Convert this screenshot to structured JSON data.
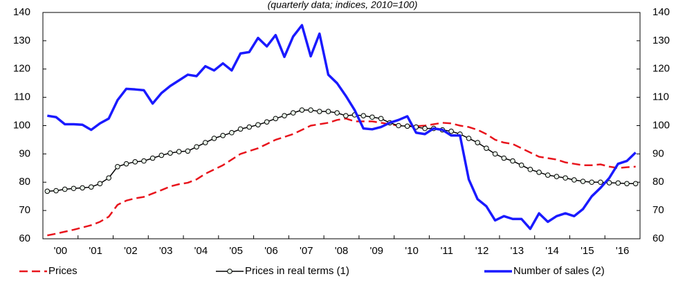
{
  "chart_data": {
    "type": "line",
    "title": "(quarterly data; indices, 2010=100)",
    "categories": [
      null,
      "'00",
      null,
      null,
      null,
      "'01",
      null,
      null,
      null,
      "'02",
      null,
      null,
      null,
      "'03",
      null,
      null,
      null,
      "'04",
      null,
      null,
      null,
      "'05",
      null,
      null,
      null,
      "'06",
      null,
      null,
      null,
      "'07",
      null,
      null,
      null,
      "'08",
      null,
      null,
      null,
      "'09",
      null,
      null,
      null,
      "'10",
      null,
      null,
      null,
      "'11",
      null,
      null,
      null,
      "'12",
      null,
      null,
      null,
      "'13",
      null,
      null,
      null,
      "'14",
      null,
      null,
      null,
      "'15",
      null,
      null,
      null,
      "'16",
      null,
      null
    ],
    "series": [
      {
        "name": "Prices",
        "color": "#e8141c",
        "style": "dashed",
        "values": [
          61.2,
          61.8,
          62.5,
          63.2,
          64.0,
          64.8,
          66.0,
          67.8,
          72.0,
          73.5,
          74.3,
          74.8,
          76.0,
          77.2,
          78.5,
          79.3,
          79.8,
          81.0,
          83.0,
          84.5,
          86.0,
          88.0,
          90.0,
          91.0,
          92.0,
          93.5,
          95.0,
          96.0,
          97.0,
          98.5,
          100.0,
          100.5,
          101.0,
          102.0,
          102.5,
          101.5,
          101.5,
          101.5,
          101.0,
          100.5,
          100.0,
          100.0,
          99.8,
          100.0,
          100.5,
          101.0,
          100.8,
          100.0,
          99.5,
          98.5,
          97.0,
          95.0,
          94.0,
          93.5,
          92.0,
          90.5,
          89.0,
          88.5,
          88.0,
          87.0,
          86.5,
          86.0,
          86.0,
          86.3,
          85.5,
          85.0,
          85.3,
          85.5
        ]
      },
      {
        "name": "Prices in real terms (1)",
        "color": "#000000",
        "style": "solid",
        "marker": "circle",
        "values": [
          76.8,
          77.0,
          77.5,
          77.8,
          78.0,
          78.3,
          79.5,
          81.5,
          85.5,
          86.5,
          87.2,
          87.5,
          88.5,
          89.5,
          90.3,
          90.8,
          91.0,
          92.5,
          94.0,
          95.5,
          96.5,
          97.5,
          98.8,
          99.5,
          100.3,
          101.3,
          102.5,
          103.5,
          104.5,
          105.5,
          105.5,
          105.0,
          105.0,
          104.5,
          103.5,
          103.8,
          103.5,
          103.0,
          102.5,
          101.0,
          100.0,
          99.8,
          99.5,
          99.0,
          99.0,
          98.5,
          98.0,
          97.0,
          95.5,
          94.0,
          92.0,
          90.0,
          88.5,
          87.5,
          86.0,
          84.5,
          83.5,
          82.5,
          82.0,
          81.5,
          80.8,
          80.3,
          80.0,
          80.0,
          79.8,
          79.7,
          79.5,
          79.5
        ]
      },
      {
        "name": "Number of sales (2)",
        "color": "#1a1aff",
        "style": "solid",
        "values": [
          103.5,
          103.0,
          100.5,
          100.5,
          100.3,
          98.5,
          100.8,
          102.5,
          109.0,
          113.0,
          112.8,
          112.5,
          107.8,
          111.5,
          114.0,
          116.0,
          118.0,
          117.5,
          121.0,
          119.5,
          122.0,
          119.5,
          125.5,
          126.0,
          131.0,
          128.0,
          132.0,
          124.3,
          131.5,
          135.5,
          124.5,
          132.5,
          118.0,
          115.0,
          110.5,
          105.5,
          99.0,
          98.7,
          99.5,
          101.0,
          102.0,
          103.3,
          97.5,
          97.0,
          99.0,
          98.5,
          96.5,
          96.5,
          81.0,
          74.0,
          71.5,
          66.5,
          68.0,
          67.0,
          67.0,
          63.5,
          69.0,
          66.0,
          68.0,
          69.0,
          68.0,
          70.5,
          75.0,
          78.0,
          81.5,
          86.5,
          87.5,
          90.5
        ]
      }
    ],
    "ylim": [
      60,
      140
    ],
    "yticks": [
      60,
      70,
      80,
      90,
      100,
      110,
      120,
      130,
      140
    ],
    "y2lim": [
      60,
      140
    ],
    "y2ticks": [
      60,
      70,
      80,
      90,
      100,
      110,
      120,
      130,
      140
    ],
    "grid": false,
    "legend": "bottom"
  }
}
